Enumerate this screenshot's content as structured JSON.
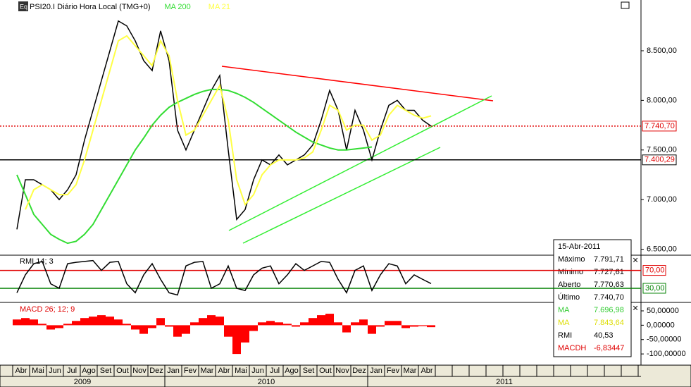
{
  "chart_data": [
    {
      "type": "line",
      "title": "PSI20.I Diário Hora Local (TMG+0)",
      "categories": [
        "Abr",
        null,
        "Mai",
        null,
        "Jun",
        null,
        "Jul",
        null,
        "Ago",
        null,
        "Set",
        null,
        "Out",
        null,
        "Nov",
        null,
        "Dez",
        null,
        "Jan",
        null,
        "Fev",
        null,
        "Mar",
        null,
        "Abr",
        null,
        "Mai",
        null,
        "Jun",
        null,
        "Jul",
        null,
        "Ago",
        null,
        "Set",
        null,
        "Out",
        null,
        "Nov",
        null,
        "Dez",
        null,
        "Jan",
        null,
        "Fev",
        null,
        "Mar",
        null,
        "Abr",
        null
      ],
      "years": [
        "2009",
        "2010",
        "2011"
      ],
      "series": [
        {
          "color": "#000000",
          "values": [
            6700,
            7200,
            7200,
            7150,
            7100,
            7000,
            7100,
            7250,
            7600,
            7900,
            8200,
            8500,
            8800,
            8750,
            8600,
            8400,
            8300,
            8700,
            8400,
            7700,
            7500,
            7700,
            7900,
            8100,
            8250,
            7500,
            6800,
            6900,
            7200,
            7400,
            7350,
            7450,
            7350,
            7400,
            7450,
            7550,
            7800,
            8100,
            7900,
            7500,
            7900,
            7700,
            7400,
            7700,
            7950,
            8000,
            7900,
            7900,
            7800,
            7740.7
          ]
        },
        {
          "name": "MA 200",
          "color": "#33dd33",
          "values": [
            7250,
            7050,
            6850,
            6750,
            6650,
            6600,
            6560,
            6580,
            6650,
            6750,
            6900,
            7050,
            7200,
            7350,
            7500,
            7620,
            7750,
            7850,
            7930,
            7980,
            8020,
            8060,
            8090,
            8110,
            8110,
            8100,
            8070,
            8030,
            7980,
            7920,
            7860,
            7800,
            7740,
            7680,
            7630,
            7580,
            7550,
            7520,
            7500,
            7500,
            7510,
            7520,
            7530,
            null,
            null,
            null,
            null,
            null,
            null,
            null
          ]
        },
        {
          "name": "MA 21",
          "color": "#ffff44",
          "values": [
            null,
            6900,
            7100,
            7150,
            7100,
            7050,
            7050,
            7150,
            7400,
            7700,
            8000,
            8300,
            8600,
            8650,
            8550,
            8450,
            8350,
            8600,
            8450,
            8000,
            7650,
            7700,
            7850,
            8000,
            8150,
            7800,
            7200,
            6950,
            7050,
            7250,
            7350,
            7400,
            7400,
            7400,
            7420,
            7480,
            7700,
            7950,
            7900,
            7700,
            7750,
            7750,
            7600,
            7650,
            7850,
            7950,
            7900,
            7850,
            7820,
            7843.64
          ]
        }
      ],
      "ylim": [
        6440,
        8990
      ],
      "yticks": [
        {
          "value": 6500,
          "label": "6.500,00"
        },
        {
          "value": 7000,
          "label": "7.000,00"
        },
        {
          "value": 7500,
          "label": "7.500,00"
        },
        {
          "value": 8000,
          "label": "8.000,00"
        },
        {
          "value": 8500,
          "label": "8.500,00"
        }
      ],
      "reference_lines": [
        {
          "value": 7740.7,
          "label": "7.740,70",
          "color": "#e00000",
          "style": "dotted"
        },
        {
          "value": 7400.29,
          "label": "7.400,29",
          "color": "#000000",
          "style": "solid"
        }
      ]
    },
    {
      "type": "line",
      "title": "RMI 14; 3",
      "series": [
        {
          "color": "#000000",
          "values": [
            20,
            60,
            85,
            90,
            40,
            30,
            85,
            88,
            90,
            92,
            70,
            88,
            90,
            40,
            20,
            60,
            85,
            50,
            20,
            15,
            80,
            88,
            90,
            30,
            40,
            80,
            30,
            25,
            60,
            75,
            80,
            40,
            60,
            85,
            70,
            80,
            90,
            88,
            50,
            20,
            70,
            80,
            25,
            60,
            85,
            80,
            40,
            60,
            50,
            40.53
          ]
        }
      ],
      "ylim": [
        0,
        104
      ],
      "yticks": [
        {
          "value": 30,
          "label": "30,00"
        },
        {
          "value": 70,
          "label": "70,00"
        }
      ],
      "tick_colors": [
        "#008000",
        "#e00000"
      ]
    },
    {
      "type": "bar",
      "title": "MACD 26; 12; 9",
      "color": "#ff0000",
      "values": [
        20,
        25,
        20,
        5,
        -15,
        -10,
        5,
        15,
        25,
        30,
        35,
        30,
        20,
        5,
        -15,
        -30,
        -10,
        25,
        -5,
        -40,
        -30,
        10,
        25,
        35,
        30,
        -40,
        -100,
        -60,
        -20,
        10,
        15,
        10,
        5,
        -5,
        10,
        25,
        35,
        40,
        10,
        -25,
        10,
        20,
        -30,
        -5,
        15,
        15,
        -10,
        -5,
        -3,
        -6.83447
      ],
      "ylim": [
        -139,
        77
      ],
      "yticks": [
        {
          "value": -100,
          "label": "-100,00000"
        },
        {
          "value": -50,
          "label": "-50,00000"
        },
        {
          "value": 0,
          "label": "0,00000"
        },
        {
          "value": 50,
          "label": "50,00000"
        }
      ]
    }
  ],
  "info_box": {
    "date": "15-Abr-2011",
    "rows": [
      {
        "label": "Máximo",
        "value": "7.791,71",
        "color": "#000000"
      },
      {
        "label": "Mínimo",
        "value": "7.727,61",
        "color": "#000000"
      },
      {
        "label": "Aberto",
        "value": "7.770,63",
        "color": "#000000"
      },
      {
        "label": "Último",
        "value": "7.740,70",
        "color": "#000000"
      },
      {
        "label": "MA",
        "value": "7.696,98",
        "color": "#33cc33"
      },
      {
        "label": "MA",
        "value": "7.843,64",
        "color": "#dddd00"
      },
      {
        "label": "RMI",
        "value": "40,53",
        "color": "#000000"
      },
      {
        "label": "MACDH",
        "value": "-6,83447",
        "color": "#e00000"
      }
    ]
  }
}
